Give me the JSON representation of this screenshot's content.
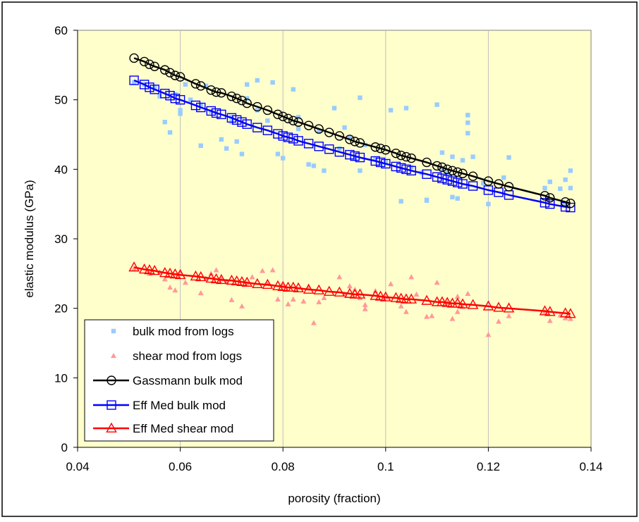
{
  "chart_data": {
    "type": "scatter",
    "title": "",
    "xlabel": "porosity (fraction)",
    "ylabel": "elastic modulus (GPa)",
    "xlim": [
      0.04,
      0.14
    ],
    "ylim": [
      0,
      60
    ],
    "x_ticks": [
      0.04,
      0.06,
      0.08,
      0.1,
      0.12,
      0.14
    ],
    "x_tick_labels": [
      "0.04",
      "0.06",
      "0.08",
      "0.1",
      "0.12",
      "0.14"
    ],
    "y_ticks": [
      0,
      10,
      20,
      30,
      40,
      50,
      60
    ],
    "y_tick_labels": [
      "0",
      "10",
      "20",
      "30",
      "40",
      "50",
      "60"
    ],
    "grid": "vertical lines only",
    "plot_background": "#ffffcc",
    "legend_position": "bottom-left",
    "series": [
      {
        "name": "bulk mod from logs",
        "style": "points",
        "marker": "square",
        "color": "#99ccff",
        "points": [
          [
            0.051,
            52.5
          ],
          [
            0.053,
            52.2
          ],
          [
            0.055,
            51.8
          ],
          [
            0.056,
            50.5
          ],
          [
            0.057,
            46.8
          ],
          [
            0.058,
            45.3
          ],
          [
            0.059,
            50.8
          ],
          [
            0.06,
            48.0
          ],
          [
            0.06,
            48.5
          ],
          [
            0.061,
            52.2
          ],
          [
            0.062,
            50.0
          ],
          [
            0.064,
            43.4
          ],
          [
            0.064,
            49.2
          ],
          [
            0.065,
            52.0
          ],
          [
            0.066,
            48.3
          ],
          [
            0.068,
            44.3
          ],
          [
            0.069,
            43.0
          ],
          [
            0.07,
            47.5
          ],
          [
            0.07,
            46.8
          ],
          [
            0.071,
            44.0
          ],
          [
            0.072,
            42.2
          ],
          [
            0.073,
            50.2
          ],
          [
            0.073,
            52.2
          ],
          [
            0.075,
            52.8
          ],
          [
            0.075,
            48.5
          ],
          [
            0.077,
            47.0
          ],
          [
            0.078,
            52.5
          ],
          [
            0.079,
            42.2
          ],
          [
            0.08,
            41.6
          ],
          [
            0.082,
            51.5
          ],
          [
            0.083,
            45.8
          ],
          [
            0.083,
            47.5
          ],
          [
            0.085,
            40.7
          ],
          [
            0.086,
            40.5
          ],
          [
            0.087,
            45.5
          ],
          [
            0.088,
            39.8
          ],
          [
            0.09,
            48.8
          ],
          [
            0.091,
            43.0
          ],
          [
            0.092,
            46.0
          ],
          [
            0.093,
            44.5
          ],
          [
            0.094,
            41.5
          ],
          [
            0.095,
            39.8
          ],
          [
            0.095,
            50.3
          ],
          [
            0.096,
            43.5
          ],
          [
            0.098,
            41.5
          ],
          [
            0.099,
            40.8
          ],
          [
            0.1,
            41.0
          ],
          [
            0.101,
            48.5
          ],
          [
            0.103,
            35.4
          ],
          [
            0.104,
            48.8
          ],
          [
            0.105,
            40.3
          ],
          [
            0.107,
            39.5
          ],
          [
            0.108,
            35.6
          ],
          [
            0.108,
            35.5
          ],
          [
            0.11,
            49.3
          ],
          [
            0.111,
            40.0
          ],
          [
            0.111,
            42.4
          ],
          [
            0.112,
            39.5
          ],
          [
            0.113,
            36.0
          ],
          [
            0.113,
            41.8
          ],
          [
            0.114,
            35.8
          ],
          [
            0.115,
            41.3
          ],
          [
            0.116,
            45.2
          ],
          [
            0.116,
            46.7
          ],
          [
            0.116,
            47.8
          ],
          [
            0.117,
            41.8
          ],
          [
            0.119,
            38.0
          ],
          [
            0.12,
            35.0
          ],
          [
            0.123,
            38.8
          ],
          [
            0.124,
            41.7
          ],
          [
            0.131,
            37.3
          ],
          [
            0.132,
            38.2
          ],
          [
            0.134,
            37.2
          ],
          [
            0.135,
            35.0
          ],
          [
            0.135,
            38.5
          ],
          [
            0.136,
            39.8
          ],
          [
            0.136,
            37.3
          ]
        ]
      },
      {
        "name": "shear mod from logs",
        "style": "points",
        "marker": "triangle",
        "color": "#ff9999",
        "points": [
          [
            0.051,
            25.7
          ],
          [
            0.054,
            25.0
          ],
          [
            0.056,
            25.2
          ],
          [
            0.057,
            24.2
          ],
          [
            0.058,
            23.0
          ],
          [
            0.059,
            22.6
          ],
          [
            0.06,
            25.3
          ],
          [
            0.061,
            23.7
          ],
          [
            0.064,
            22.2
          ],
          [
            0.065,
            24.3
          ],
          [
            0.066,
            25.0
          ],
          [
            0.067,
            25.5
          ],
          [
            0.068,
            24.2
          ],
          [
            0.069,
            23.8
          ],
          [
            0.07,
            21.2
          ],
          [
            0.072,
            20.3
          ],
          [
            0.073,
            23.6
          ],
          [
            0.074,
            24.5
          ],
          [
            0.076,
            25.4
          ],
          [
            0.077,
            23.5
          ],
          [
            0.078,
            25.5
          ],
          [
            0.079,
            21.3
          ],
          [
            0.08,
            23.5
          ],
          [
            0.081,
            20.6
          ],
          [
            0.082,
            21.3
          ],
          [
            0.084,
            21.0
          ],
          [
            0.085,
            23.1
          ],
          [
            0.086,
            17.9
          ],
          [
            0.087,
            20.9
          ],
          [
            0.088,
            21.5
          ],
          [
            0.091,
            24.5
          ],
          [
            0.092,
            22.0
          ],
          [
            0.093,
            23.2
          ],
          [
            0.094,
            22.7
          ],
          [
            0.095,
            21.5
          ],
          [
            0.096,
            20.5
          ],
          [
            0.096,
            19.9
          ],
          [
            0.098,
            22.5
          ],
          [
            0.1,
            21.6
          ],
          [
            0.101,
            23.5
          ],
          [
            0.103,
            20.3
          ],
          [
            0.104,
            19.5
          ],
          [
            0.105,
            24.5
          ],
          [
            0.106,
            22.0
          ],
          [
            0.108,
            18.8
          ],
          [
            0.109,
            18.9
          ],
          [
            0.11,
            23.7
          ],
          [
            0.112,
            20.8
          ],
          [
            0.113,
            18.5
          ],
          [
            0.114,
            19.5
          ],
          [
            0.114,
            21.7
          ],
          [
            0.115,
            20.2
          ],
          [
            0.116,
            22.1
          ],
          [
            0.12,
            16.2
          ],
          [
            0.122,
            18.1
          ],
          [
            0.124,
            18.9
          ],
          [
            0.131,
            19.5
          ],
          [
            0.132,
            18.2
          ],
          [
            0.134,
            19.0
          ],
          [
            0.135,
            18.6
          ],
          [
            0.136,
            18.5
          ]
        ]
      },
      {
        "name": "Gassmann bulk mod",
        "style": "line+markers",
        "marker": "circle",
        "color": "#000000",
        "points": [
          [
            0.051,
            56.0
          ],
          [
            0.053,
            55.5
          ],
          [
            0.054,
            55.1
          ],
          [
            0.055,
            54.8
          ],
          [
            0.057,
            54.3
          ],
          [
            0.058,
            53.9
          ],
          [
            0.059,
            53.5
          ],
          [
            0.06,
            53.3
          ],
          [
            0.063,
            52.3
          ],
          [
            0.064,
            52.0
          ],
          [
            0.066,
            51.4
          ],
          [
            0.067,
            51.1
          ],
          [
            0.068,
            51.0
          ],
          [
            0.07,
            50.5
          ],
          [
            0.071,
            50.2
          ],
          [
            0.072,
            49.9
          ],
          [
            0.073,
            49.5
          ],
          [
            0.075,
            49.0
          ],
          [
            0.077,
            48.5
          ],
          [
            0.079,
            47.9
          ],
          [
            0.08,
            47.6
          ],
          [
            0.081,
            47.3
          ],
          [
            0.082,
            47.0
          ],
          [
            0.083,
            46.8
          ],
          [
            0.085,
            46.3
          ],
          [
            0.087,
            45.8
          ],
          [
            0.089,
            45.3
          ],
          [
            0.091,
            44.8
          ],
          [
            0.093,
            44.3
          ],
          [
            0.094,
            44.0
          ],
          [
            0.095,
            43.8
          ],
          [
            0.098,
            43.2
          ],
          [
            0.099,
            43.0
          ],
          [
            0.1,
            42.8
          ],
          [
            0.102,
            42.3
          ],
          [
            0.103,
            42.0
          ],
          [
            0.104,
            41.8
          ],
          [
            0.105,
            41.6
          ],
          [
            0.108,
            41.0
          ],
          [
            0.11,
            40.5
          ],
          [
            0.111,
            40.3
          ],
          [
            0.112,
            40.0
          ],
          [
            0.113,
            39.8
          ],
          [
            0.114,
            39.6
          ],
          [
            0.115,
            39.4
          ],
          [
            0.117,
            39.0
          ],
          [
            0.12,
            38.3
          ],
          [
            0.122,
            37.9
          ],
          [
            0.124,
            37.5
          ],
          [
            0.131,
            36.2
          ],
          [
            0.132,
            35.9
          ],
          [
            0.135,
            35.3
          ],
          [
            0.136,
            35.1
          ]
        ]
      },
      {
        "name": "Eff Med bulk mod",
        "style": "line+markers",
        "marker": "square",
        "color": "#0000ff",
        "points": [
          [
            0.051,
            52.8
          ],
          [
            0.053,
            52.2
          ],
          [
            0.054,
            51.8
          ],
          [
            0.055,
            51.5
          ],
          [
            0.057,
            50.9
          ],
          [
            0.058,
            50.6
          ],
          [
            0.059,
            50.2
          ],
          [
            0.06,
            50.0
          ],
          [
            0.063,
            49.2
          ],
          [
            0.064,
            48.9
          ],
          [
            0.066,
            48.4
          ],
          [
            0.067,
            48.1
          ],
          [
            0.068,
            47.9
          ],
          [
            0.07,
            47.4
          ],
          [
            0.071,
            47.1
          ],
          [
            0.072,
            46.8
          ],
          [
            0.073,
            46.5
          ],
          [
            0.075,
            46.0
          ],
          [
            0.077,
            45.6
          ],
          [
            0.079,
            45.1
          ],
          [
            0.08,
            44.8
          ],
          [
            0.081,
            44.6
          ],
          [
            0.082,
            44.4
          ],
          [
            0.083,
            44.1
          ],
          [
            0.085,
            43.7
          ],
          [
            0.087,
            43.3
          ],
          [
            0.089,
            42.9
          ],
          [
            0.091,
            42.5
          ],
          [
            0.093,
            42.1
          ],
          [
            0.094,
            41.9
          ],
          [
            0.095,
            41.7
          ],
          [
            0.098,
            41.2
          ],
          [
            0.099,
            41.0
          ],
          [
            0.1,
            40.8
          ],
          [
            0.102,
            40.4
          ],
          [
            0.103,
            40.2
          ],
          [
            0.104,
            40.0
          ],
          [
            0.105,
            39.8
          ],
          [
            0.108,
            39.3
          ],
          [
            0.11,
            38.9
          ],
          [
            0.111,
            38.7
          ],
          [
            0.112,
            38.5
          ],
          [
            0.113,
            38.3
          ],
          [
            0.114,
            38.1
          ],
          [
            0.115,
            37.9
          ],
          [
            0.117,
            37.6
          ],
          [
            0.12,
            37.0
          ],
          [
            0.122,
            36.7
          ],
          [
            0.124,
            36.3
          ],
          [
            0.131,
            35.2
          ],
          [
            0.132,
            35.0
          ],
          [
            0.135,
            34.6
          ],
          [
            0.136,
            34.5
          ]
        ]
      },
      {
        "name": "Eff Med shear mod",
        "style": "line+markers",
        "marker": "triangle",
        "color": "#ff0000",
        "points": [
          [
            0.051,
            25.9
          ],
          [
            0.053,
            25.6
          ],
          [
            0.054,
            25.5
          ],
          [
            0.055,
            25.4
          ],
          [
            0.057,
            25.1
          ],
          [
            0.058,
            25.0
          ],
          [
            0.059,
            24.9
          ],
          [
            0.06,
            24.8
          ],
          [
            0.063,
            24.6
          ],
          [
            0.064,
            24.5
          ],
          [
            0.066,
            24.3
          ],
          [
            0.067,
            24.2
          ],
          [
            0.068,
            24.1
          ],
          [
            0.07,
            24.0
          ],
          [
            0.071,
            23.9
          ],
          [
            0.072,
            23.8
          ],
          [
            0.073,
            23.7
          ],
          [
            0.075,
            23.5
          ],
          [
            0.077,
            23.4
          ],
          [
            0.079,
            23.2
          ],
          [
            0.08,
            23.1
          ],
          [
            0.081,
            23.0
          ],
          [
            0.082,
            23.0
          ],
          [
            0.083,
            22.9
          ],
          [
            0.085,
            22.7
          ],
          [
            0.087,
            22.6
          ],
          [
            0.089,
            22.4
          ],
          [
            0.091,
            22.3
          ],
          [
            0.093,
            22.1
          ],
          [
            0.094,
            22.0
          ],
          [
            0.095,
            22.0
          ],
          [
            0.098,
            21.8
          ],
          [
            0.099,
            21.7
          ],
          [
            0.1,
            21.6
          ],
          [
            0.102,
            21.5
          ],
          [
            0.103,
            21.4
          ],
          [
            0.104,
            21.3
          ],
          [
            0.105,
            21.3
          ],
          [
            0.108,
            21.1
          ],
          [
            0.11,
            20.9
          ],
          [
            0.111,
            20.9
          ],
          [
            0.112,
            20.8
          ],
          [
            0.113,
            20.7
          ],
          [
            0.114,
            20.7
          ],
          [
            0.115,
            20.6
          ],
          [
            0.117,
            20.5
          ],
          [
            0.12,
            20.3
          ],
          [
            0.122,
            20.1
          ],
          [
            0.124,
            20.0
          ],
          [
            0.131,
            19.6
          ],
          [
            0.132,
            19.5
          ],
          [
            0.135,
            19.3
          ],
          [
            0.136,
            19.2
          ]
        ]
      }
    ]
  }
}
